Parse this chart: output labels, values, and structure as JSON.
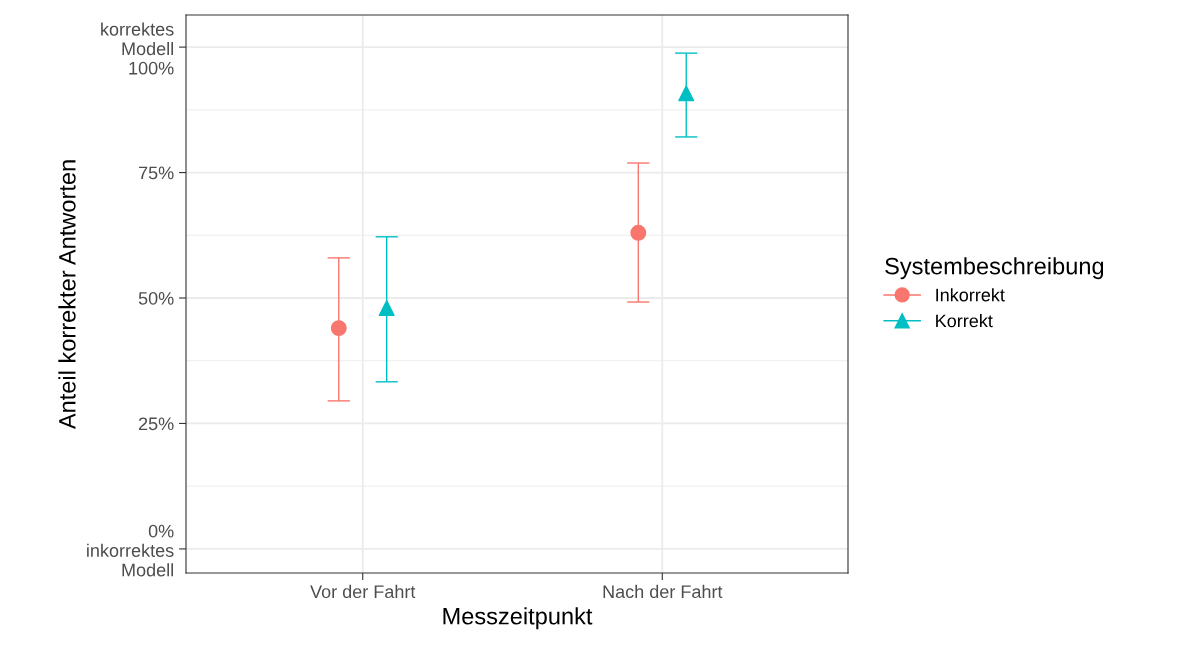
{
  "chart_data": {
    "type": "scatter",
    "xlabel": "Messzeitpunkt",
    "ylabel": "Anteil korrekter Antworten",
    "legend_title": "Systembeschreibung",
    "categories": [
      "Vor der Fahrt",
      "Nach der Fahrt"
    ],
    "series": [
      {
        "name": "Inkorrekt",
        "color": "#f8766d",
        "marker": "circle",
        "values": [
          44.0,
          63.0
        ],
        "errors": [
          [
            29.5,
            58.0
          ],
          [
            49.2,
            76.9
          ]
        ]
      },
      {
        "name": "Korrekt",
        "color": "#00bfc4",
        "marker": "triangle",
        "values": [
          48.0,
          90.8
        ],
        "errors": [
          [
            33.3,
            62.2
          ],
          [
            82.1,
            98.8
          ]
        ]
      }
    ],
    "ylim": [
      -4.8,
      106.4
    ],
    "yticks": [
      {
        "value": 0,
        "label": "0%\ninkorrektes\nModell"
      },
      {
        "value": 25,
        "label": "25%"
      },
      {
        "value": 50,
        "label": "50%"
      },
      {
        "value": 75,
        "label": "75%"
      },
      {
        "value": 100,
        "label": "korrektes\nModell\n100%"
      }
    ],
    "grid": true,
    "legend": "right"
  }
}
